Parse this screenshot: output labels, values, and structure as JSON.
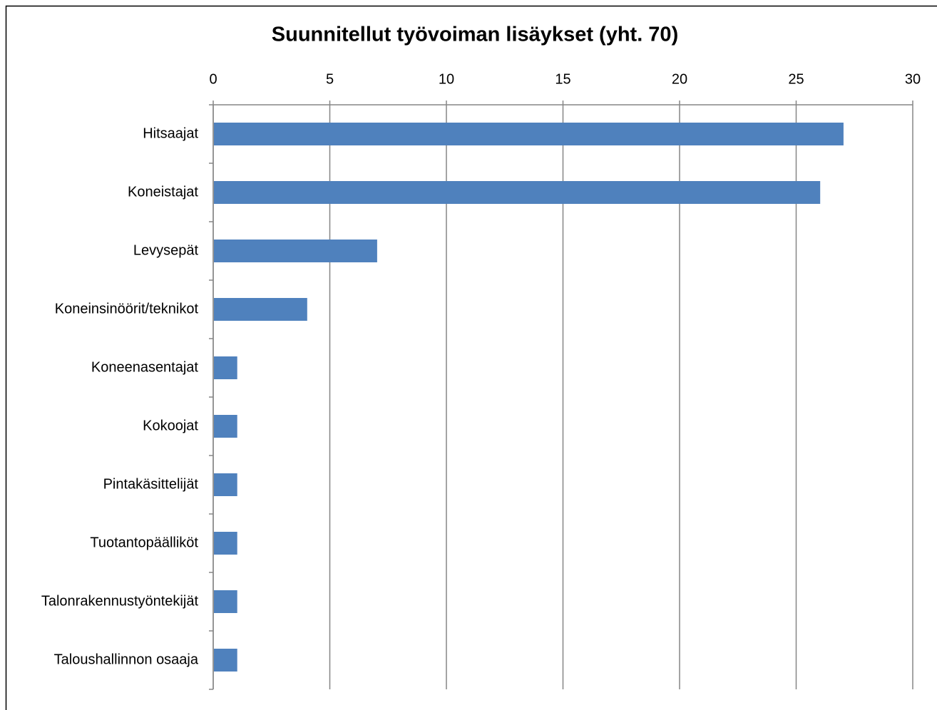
{
  "chart_data": {
    "type": "bar",
    "orientation": "horizontal",
    "value_axis": "top",
    "title": "Suunnitellut työvoiman lisäykset (yht. 70)",
    "categories": [
      "Hitsaajat",
      "Koneistajat",
      "Levysepät",
      "Koneinsinöörit/teknikot",
      "Koneenasentajat",
      "Kokoojat",
      "Pintakäsittelijät",
      "Tuotantopäälliköt",
      "Talonrakennustyöntekijät",
      "Taloushallinnon osaaja"
    ],
    "values": [
      27,
      26,
      7,
      4,
      1,
      1,
      1,
      1,
      1,
      1
    ],
    "color": "#4f81bd",
    "xlim": [
      0,
      30
    ],
    "xticks": [
      0,
      5,
      10,
      15,
      20,
      25,
      30
    ],
    "grid": true
  }
}
